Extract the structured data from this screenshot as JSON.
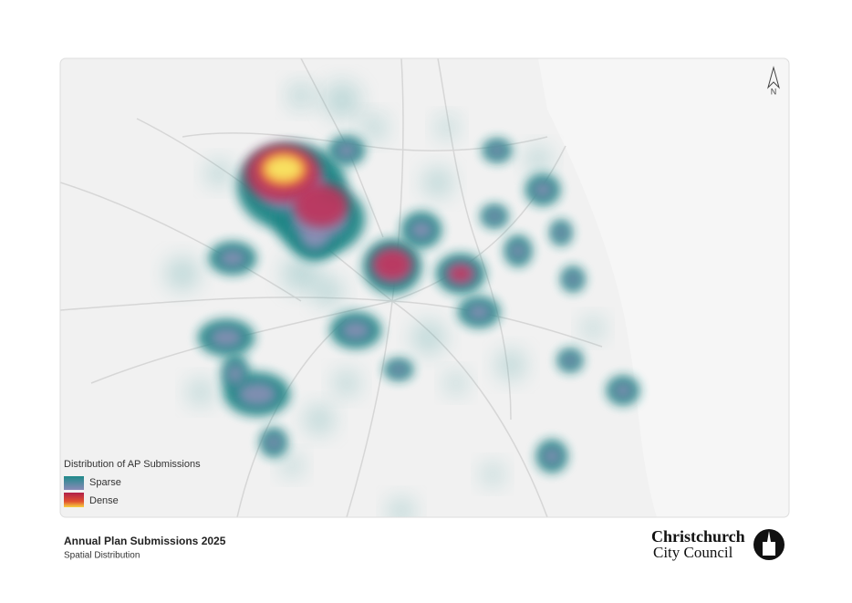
{
  "map": {
    "north_label": "N",
    "legend": {
      "title": "Distribution of AP Submissions",
      "items": [
        "Sparse",
        "Dense"
      ]
    }
  },
  "footer": {
    "title": "Annual Plan Submissions 2025",
    "subtitle": "Spatial Distribution",
    "logo": {
      "line1": "Christchurch",
      "line2": "City Council"
    }
  }
}
